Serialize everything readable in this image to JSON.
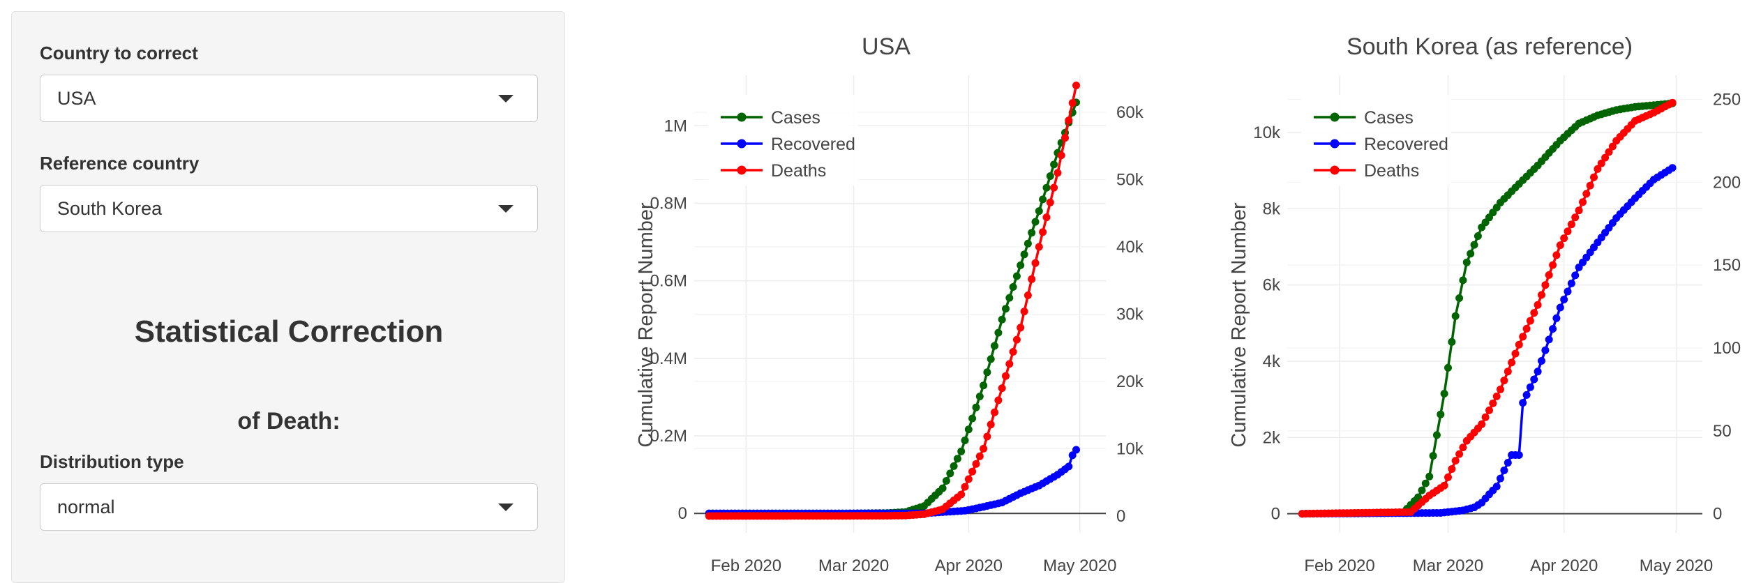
{
  "sidebar": {
    "country_label": "Country to correct",
    "country_value": "USA",
    "reference_label": "Reference country",
    "reference_value": "South Korea",
    "heading_line1": "Statistical Correction",
    "heading_line2": "of Death:",
    "distribution_label": "Distribution type",
    "distribution_value": "normal"
  },
  "colors": {
    "cases": "#006400",
    "recovered": "#0000ff",
    "deaths": "#ff0000"
  },
  "chart_data": [
    {
      "type": "line",
      "title": "USA",
      "ylabel": "Cumulative Report Number",
      "xaxis": {
        "type": "date",
        "range": [
          "2020-01-18",
          "2020-05-08"
        ],
        "ticks": [
          "Feb 2020",
          "Mar 2020",
          "Apr 2020",
          "May 2020"
        ],
        "tick_dates": [
          "2020-02-01",
          "2020-03-01",
          "2020-04-01",
          "2020-05-01"
        ]
      },
      "yaxis_left": {
        "range": [
          -50000,
          1130000
        ],
        "ticks": [
          0,
          200000,
          400000,
          600000,
          800000,
          1000000
        ],
        "tick_labels": [
          "0",
          "0.2M",
          "0.4M",
          "0.6M",
          "0.8M",
          "1M"
        ]
      },
      "yaxis_right": {
        "range": [
          -2500,
          65500
        ],
        "ticks": [
          0,
          10000,
          20000,
          30000,
          40000,
          50000,
          60000
        ],
        "tick_labels": [
          "0",
          "10k",
          "20k",
          "30k",
          "40k",
          "50k",
          "60k"
        ]
      },
      "grid": true,
      "legend": "top-left",
      "series": [
        {
          "name": "Cases",
          "axis": "left",
          "color_key": "cases",
          "anchors": [
            [
              "2020-01-22",
              0
            ],
            [
              "2020-03-01",
              70
            ],
            [
              "2020-03-10",
              1000
            ],
            [
              "2020-03-15",
              3500
            ],
            [
              "2020-03-20",
              19000
            ],
            [
              "2020-03-25",
              65000
            ],
            [
              "2020-03-30",
              160000
            ],
            [
              "2020-04-05",
              330000
            ],
            [
              "2020-04-10",
              500000
            ],
            [
              "2020-04-15",
              640000
            ],
            [
              "2020-04-20",
              780000
            ],
            [
              "2020-04-25",
              930000
            ],
            [
              "2020-04-30",
              1060000
            ]
          ]
        },
        {
          "name": "Recovered",
          "axis": "left",
          "color_key": "recovered",
          "anchors": [
            [
              "2020-01-22",
              0
            ],
            [
              "2020-03-20",
              150
            ],
            [
              "2020-03-31",
              7000
            ],
            [
              "2020-04-05",
              17000
            ],
            [
              "2020-04-10",
              28000
            ],
            [
              "2020-04-15",
              52000
            ],
            [
              "2020-04-20",
              72000
            ],
            [
              "2020-04-25",
              100000
            ],
            [
              "2020-04-28",
              121000
            ],
            [
              "2020-04-29",
              150000
            ],
            [
              "2020-04-30",
              164000
            ]
          ]
        },
        {
          "name": "Deaths",
          "axis": "right",
          "color_key": "deaths",
          "anchors": [
            [
              "2020-01-22",
              0
            ],
            [
              "2020-03-10",
              30
            ],
            [
              "2020-03-15",
              70
            ],
            [
              "2020-03-20",
              260
            ],
            [
              "2020-03-25",
              1000
            ],
            [
              "2020-03-30",
              3200
            ],
            [
              "2020-04-05",
              10000
            ],
            [
              "2020-04-10",
              19000
            ],
            [
              "2020-04-15",
              28000
            ],
            [
              "2020-04-20",
              40000
            ],
            [
              "2020-04-25",
              51000
            ],
            [
              "2020-04-30",
              64000
            ]
          ]
        }
      ]
    },
    {
      "type": "line",
      "title": "South Korea (as reference)",
      "ylabel": "Cumulative Report Number",
      "xaxis": {
        "type": "date",
        "range": [
          "2020-01-18",
          "2020-05-08"
        ],
        "ticks": [
          "Feb 2020",
          "Mar 2020",
          "Apr 2020",
          "May 2020"
        ],
        "tick_dates": [
          "2020-02-01",
          "2020-03-01",
          "2020-04-01",
          "2020-05-01"
        ]
      },
      "yaxis_left": {
        "range": [
          -500,
          11500
        ],
        "ticks": [
          0,
          2000,
          4000,
          6000,
          8000,
          10000
        ],
        "tick_labels": [
          "0",
          "2k",
          "4k",
          "6k",
          "8k",
          "10k"
        ]
      },
      "yaxis_right": {
        "range": [
          -11.5,
          264.5
        ],
        "ticks": [
          0,
          50,
          100,
          150,
          200,
          250
        ],
        "tick_labels": [
          "0",
          "50",
          "100",
          "150",
          "200",
          "250"
        ]
      },
      "grid": true,
      "legend": "top-left",
      "series": [
        {
          "name": "Cases",
          "axis": "left",
          "color_key": "cases",
          "anchors": [
            [
              "2020-01-22",
              0
            ],
            [
              "2020-02-18",
              31
            ],
            [
              "2020-02-22",
              433
            ],
            [
              "2020-02-25",
              977
            ],
            [
              "2020-02-29",
              3150
            ],
            [
              "2020-03-03",
              5186
            ],
            [
              "2020-03-06",
              6593
            ],
            [
              "2020-03-10",
              7513
            ],
            [
              "2020-03-15",
              8162
            ],
            [
              "2020-03-20",
              8652
            ],
            [
              "2020-03-25",
              9137
            ],
            [
              "2020-03-31",
              9786
            ],
            [
              "2020-04-05",
              10237
            ],
            [
              "2020-04-10",
              10450
            ],
            [
              "2020-04-15",
              10591
            ],
            [
              "2020-04-20",
              10674
            ],
            [
              "2020-04-25",
              10718
            ],
            [
              "2020-04-30",
              10765
            ]
          ]
        },
        {
          "name": "Recovered",
          "axis": "left",
          "color_key": "recovered",
          "anchors": [
            [
              "2020-01-22",
              0
            ],
            [
              "2020-02-28",
              22
            ],
            [
              "2020-03-05",
              88
            ],
            [
              "2020-03-08",
              166
            ],
            [
              "2020-03-10",
              288
            ],
            [
              "2020-03-12",
              510
            ],
            [
              "2020-03-14",
              714
            ],
            [
              "2020-03-16",
              1137
            ],
            [
              "2020-03-18",
              1540
            ],
            [
              "2020-03-20",
              1540
            ],
            [
              "2020-03-21",
              2909
            ],
            [
              "2020-03-25",
              3730
            ],
            [
              "2020-03-31",
              5408
            ],
            [
              "2020-04-05",
              6463
            ],
            [
              "2020-04-10",
              7117
            ],
            [
              "2020-04-15",
              7757
            ],
            [
              "2020-04-20",
              8277
            ],
            [
              "2020-04-25",
              8764
            ],
            [
              "2020-04-30",
              9072
            ]
          ]
        },
        {
          "name": "Deaths",
          "axis": "right",
          "color_key": "deaths",
          "anchors": [
            [
              "2020-01-22",
              0
            ],
            [
              "2020-02-20",
              1
            ],
            [
              "2020-02-25",
              11
            ],
            [
              "2020-02-29",
              17
            ],
            [
              "2020-03-03",
              32
            ],
            [
              "2020-03-06",
              44
            ],
            [
              "2020-03-10",
              54
            ],
            [
              "2020-03-15",
              75
            ],
            [
              "2020-03-20",
              102
            ],
            [
              "2020-03-25",
              126
            ],
            [
              "2020-03-31",
              162
            ],
            [
              "2020-04-05",
              183
            ],
            [
              "2020-04-10",
              208
            ],
            [
              "2020-04-15",
              225
            ],
            [
              "2020-04-20",
              237
            ],
            [
              "2020-04-25",
              242
            ],
            [
              "2020-04-30",
              248
            ]
          ]
        }
      ]
    }
  ]
}
